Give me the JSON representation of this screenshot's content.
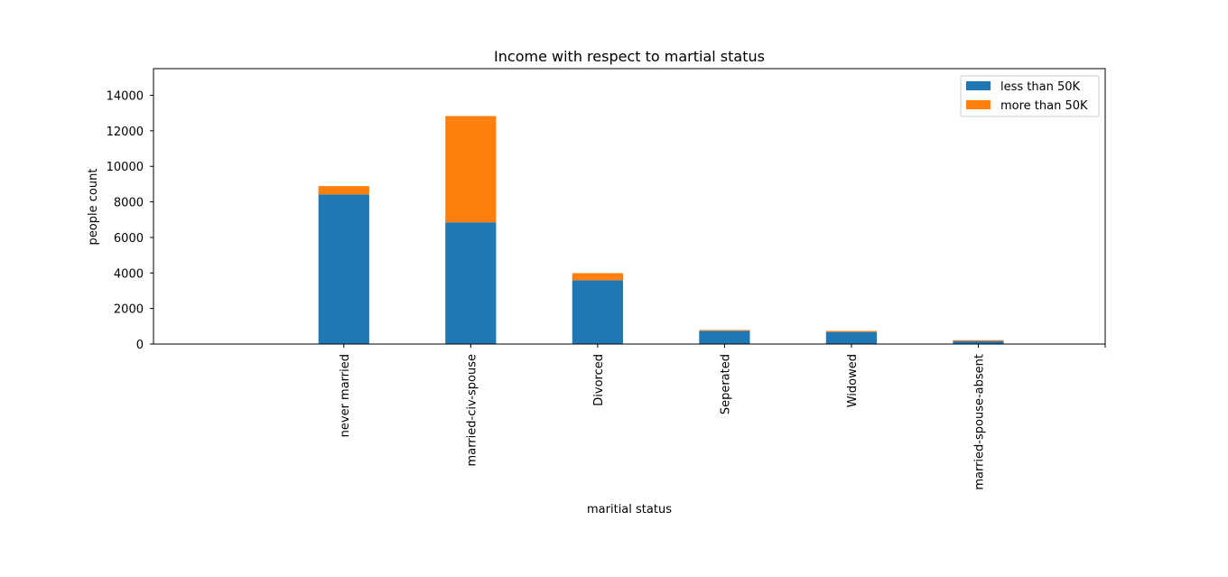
{
  "chart_data": {
    "type": "bar",
    "stacked": true,
    "title": "Income with respect to martial status",
    "xlabel": "maritial status",
    "ylabel": "people count",
    "categories": [
      "never married",
      "married-civ-spouse",
      "Divorced",
      "Seperated",
      "Widowed",
      "married-spouse-absent",
      ""
    ],
    "series": [
      {
        "name": "less than 50K",
        "color": "#1f77b4",
        "values": [
          8420,
          6850,
          3590,
          740,
          680,
          170,
          0
        ]
      },
      {
        "name": "more than 50K",
        "color": "#ff7f0e",
        "values": [
          470,
          5980,
          400,
          50,
          60,
          50,
          0
        ]
      }
    ],
    "ylim": [
      0,
      15500
    ],
    "yticks": [
      0,
      2000,
      4000,
      6000,
      8000,
      10000,
      12000,
      14000
    ],
    "xlim": [
      -1.5,
      6
    ],
    "grid": false,
    "legend_position": "top-right"
  }
}
